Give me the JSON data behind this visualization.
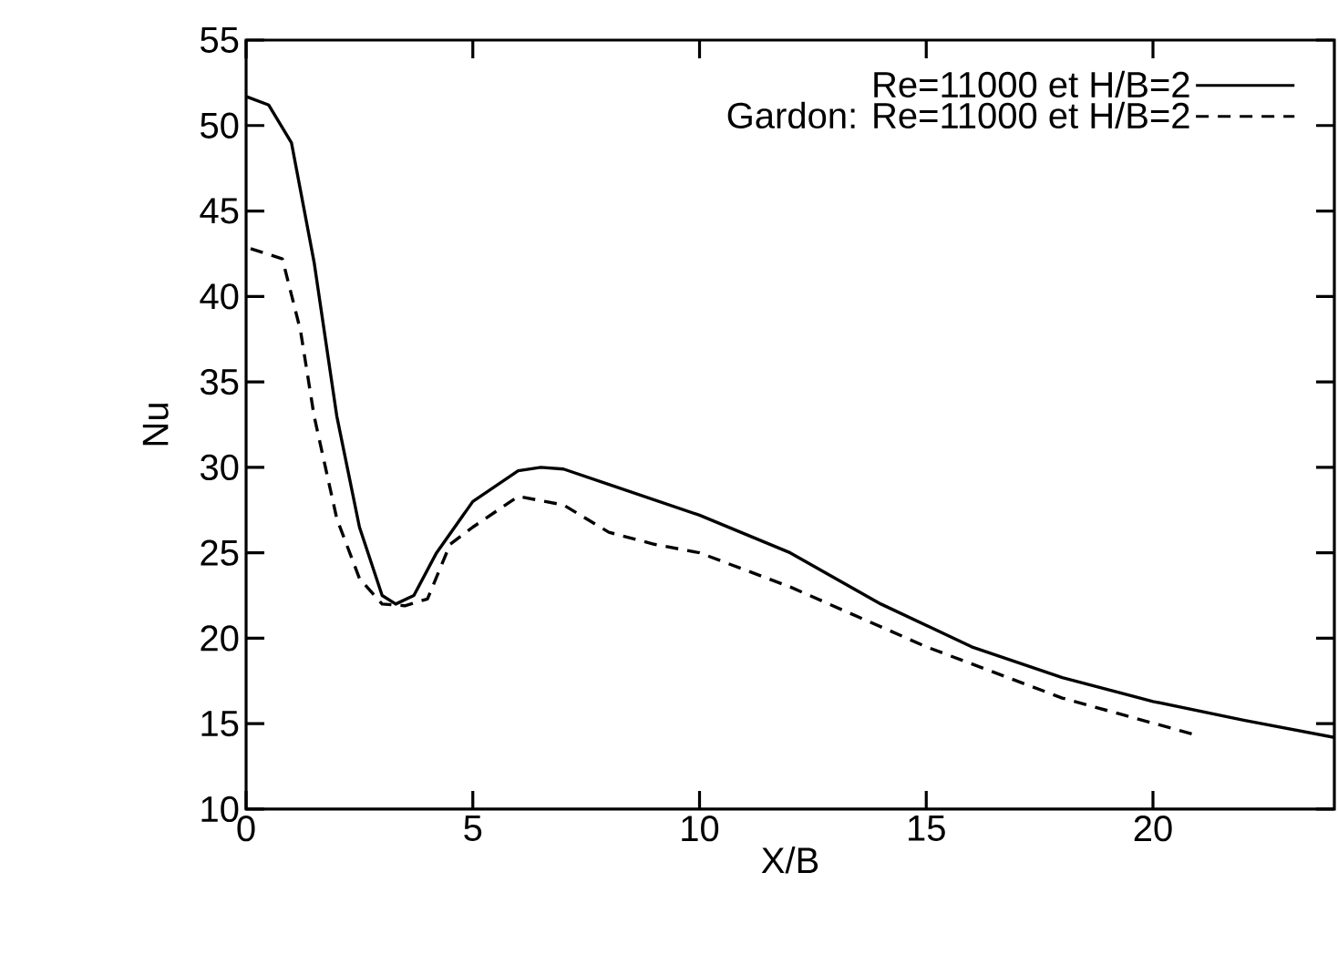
{
  "chart_data": {
    "type": "line",
    "xlabel": "X/B",
    "ylabel": "Nu",
    "xlim": [
      0,
      24
    ],
    "ylim": [
      10,
      55
    ],
    "xticks": [
      0,
      5,
      10,
      15,
      20
    ],
    "yticks": [
      10,
      15,
      20,
      25,
      30,
      35,
      40,
      45,
      50,
      55
    ],
    "grid": false,
    "legend": "top right",
    "marker": "none",
    "series": [
      {
        "name": "Re=11000 et H/B=2",
        "color": "#000000",
        "line_style": "solid",
        "x": [
          0,
          0.5,
          1,
          1.5,
          2,
          2.5,
          3,
          3.3,
          3.7,
          4.2,
          5,
          6,
          6.5,
          7,
          8,
          10,
          12,
          14,
          16,
          18,
          20,
          22,
          24
        ],
        "values": [
          51.7,
          51.2,
          49,
          42,
          33,
          26.5,
          22.5,
          22,
          22.5,
          25,
          28,
          29.8,
          30,
          29.9,
          29,
          27.2,
          25,
          22,
          19.5,
          17.7,
          16.3,
          15.2,
          14.2
        ]
      },
      {
        "name": "Gardon: Re=11000 et H/B=2",
        "color": "#000000",
        "line_style": "dashed",
        "x": [
          0.1,
          0.8,
          1.2,
          1.5,
          2,
          2.5,
          3,
          3.5,
          4,
          4.5,
          5,
          6,
          7,
          8,
          9,
          10,
          12,
          15,
          18,
          21
        ],
        "values": [
          42.8,
          42.2,
          38,
          33,
          27,
          23.5,
          22,
          21.9,
          22.3,
          25.5,
          26.5,
          28.3,
          27.8,
          26.2,
          25.5,
          25,
          23,
          19.5,
          16.5,
          14.3
        ]
      }
    ]
  }
}
